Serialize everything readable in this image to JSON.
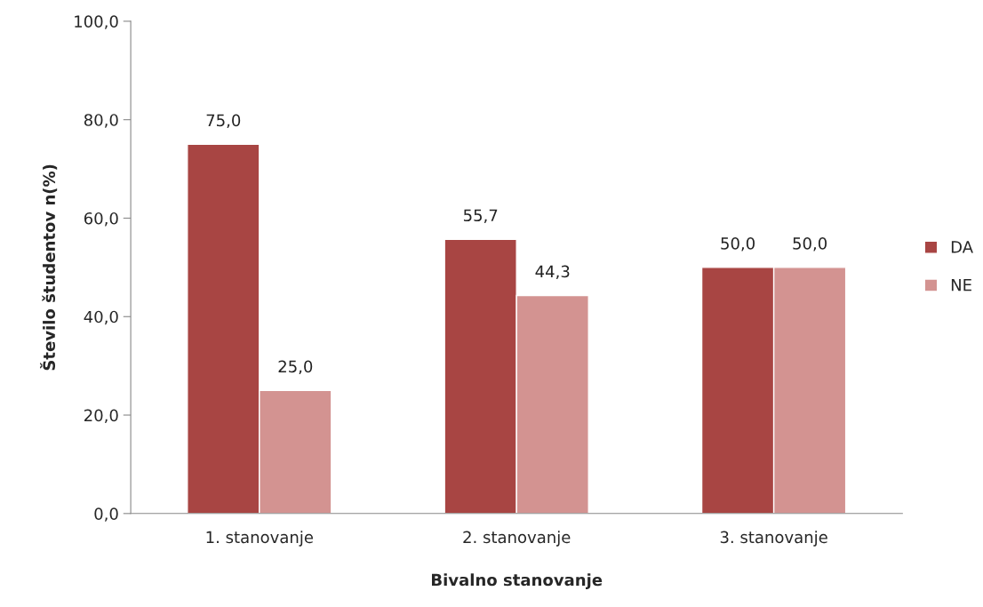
{
  "chart_data": {
    "type": "bar",
    "xlabel": "Bivalno stanovanje",
    "ylabel": "Število študentov n(%)",
    "categories": [
      "1. stanovanje",
      "2. stanovanje",
      "3. stanovanje"
    ],
    "series": [
      {
        "name": "DA",
        "color": "#a84543",
        "values": [
          75.0,
          55.7,
          50.0
        ],
        "value_labels": [
          "75,0",
          "55,7",
          "50,0"
        ]
      },
      {
        "name": "NE",
        "color": "#d39391",
        "values": [
          25.0,
          44.3,
          50.0
        ],
        "value_labels": [
          "25,0",
          "44,3",
          "50,0"
        ]
      }
    ],
    "ylim": [
      0,
      100
    ],
    "yticks": [
      {
        "value": 0,
        "label": "0,0"
      },
      {
        "value": 20,
        "label": "20,0"
      },
      {
        "value": 40,
        "label": "40,0"
      },
      {
        "value": 60,
        "label": "60,0"
      },
      {
        "value": 80,
        "label": "80,0"
      },
      {
        "value": 100,
        "label": "100,0"
      }
    ],
    "grid": false,
    "legend": "right"
  }
}
